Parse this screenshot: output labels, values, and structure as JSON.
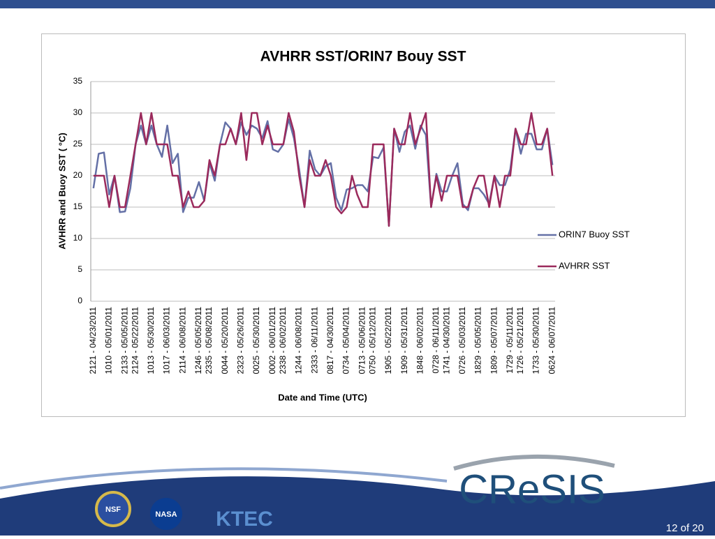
{
  "chart_data": {
    "type": "line",
    "title": "AVHRR SST/ORIN7 Bouy SST",
    "x_label": "Date and Time (UTC)",
    "y_label": "AVHRR and Buoy SST ( °C)",
    "categories": [
      "2121 - 04/23/2011",
      null,
      null,
      "1010 - 05/01/2011",
      null,
      null,
      "2133 - 05/05/2011",
      null,
      "2124 - 05/22/2011",
      null,
      null,
      "1013 - 05/30/2011",
      null,
      null,
      "1017 - 06/03/2011",
      null,
      null,
      "2114 - 06/08/2011",
      null,
      null,
      "1246 - 05/05/2011",
      null,
      "2335 - 05/08/2011",
      null,
      null,
      "0044 - 05/20/2011",
      null,
      null,
      "2323 - 05/26/2011",
      null,
      null,
      "0025 - 05/30/2011",
      null,
      null,
      "0002 - 06/01/2011",
      null,
      "2338 - 06/02/2011",
      null,
      null,
      "1244 - 06/08/2011",
      null,
      null,
      "2333 - 06/11/2011",
      null,
      null,
      "0817 - 04/30/2011",
      null,
      null,
      "0734 - 05/04/2011",
      null,
      null,
      "0713 - 05/06/2011",
      null,
      "0750 - 05/12/2011",
      null,
      null,
      "1905 - 05/22/2011",
      null,
      null,
      "1909 - 05/31/2011",
      null,
      null,
      "1848 - 06/02/2011",
      null,
      null,
      "0728 - 06/11/2011",
      null,
      "1741 - 04/30/2011",
      null,
      null,
      "0726 - 05/03/2011",
      null,
      null,
      "1829 - 05/05/2011",
      null,
      null,
      "1809 - 05/07/2011",
      null,
      null,
      "1729 - 05/11/2011",
      null,
      "1726 - 05/21/2011",
      null,
      null,
      "1733 - 05/30/2011",
      null,
      null,
      "0624 - 06/07/2011"
    ],
    "series": [
      {
        "name": "ORIN7 Buoy SST",
        "color": "#6470a6",
        "values": [
          18,
          23.5,
          23.7,
          17,
          20,
          14.2,
          14.3,
          18,
          25,
          28,
          25,
          28,
          25,
          23,
          28,
          22,
          23.5,
          14.2,
          16.5,
          16.5,
          19,
          16,
          22,
          19.2,
          25,
          28.5,
          27.5,
          25,
          28.5,
          26.5,
          28,
          27.5,
          26,
          28.7,
          24.2,
          23.8,
          25,
          29,
          26,
          21,
          15,
          24,
          21,
          20,
          21.5,
          22,
          16.5,
          14.5,
          17.8,
          18,
          18.5,
          18.5,
          17.5,
          23,
          22.8,
          24.5,
          12,
          27.5,
          23.8,
          27,
          28,
          24.3,
          28,
          26.5,
          15,
          20.3,
          17.5,
          17.5,
          20,
          22,
          15.5,
          14.5,
          18,
          18,
          17,
          15.5,
          20,
          18.5,
          18.5,
          21,
          27.5,
          23.5,
          26.7,
          26.7,
          24.2,
          24.2,
          27.5,
          21.7
        ]
      },
      {
        "name": "AVHRR SST",
        "color": "#9b2a5c",
        "values": [
          20,
          20,
          20,
          15,
          20,
          15,
          15,
          20,
          25,
          30,
          25,
          30,
          25,
          25,
          25,
          20,
          20,
          15,
          17.5,
          15,
          15,
          16,
          22.5,
          20,
          25,
          25,
          27.5,
          25,
          30,
          22.5,
          30,
          30,
          25,
          28,
          25,
          25,
          25,
          30,
          27,
          20,
          15,
          22.5,
          20,
          20,
          22.5,
          20,
          15,
          14,
          15,
          20,
          17,
          15,
          15,
          25,
          25,
          25,
          12,
          27.5,
          25,
          25,
          30,
          25,
          27.5,
          30,
          15,
          20,
          16,
          20,
          20,
          20,
          15,
          15,
          18,
          20,
          20,
          15,
          20,
          15,
          20,
          20,
          27.5,
          25,
          25,
          30,
          25,
          25,
          27.5,
          20
        ]
      }
    ],
    "ylim": [
      0,
      35
    ],
    "yticks": [
      0,
      5,
      10,
      15,
      20,
      25,
      30,
      35
    ],
    "grid": true,
    "legend": "right"
  },
  "footer": {
    "page": "12 of 20",
    "logos": [
      "NSF",
      "NASA",
      "KTEC",
      "CReSIS"
    ]
  }
}
